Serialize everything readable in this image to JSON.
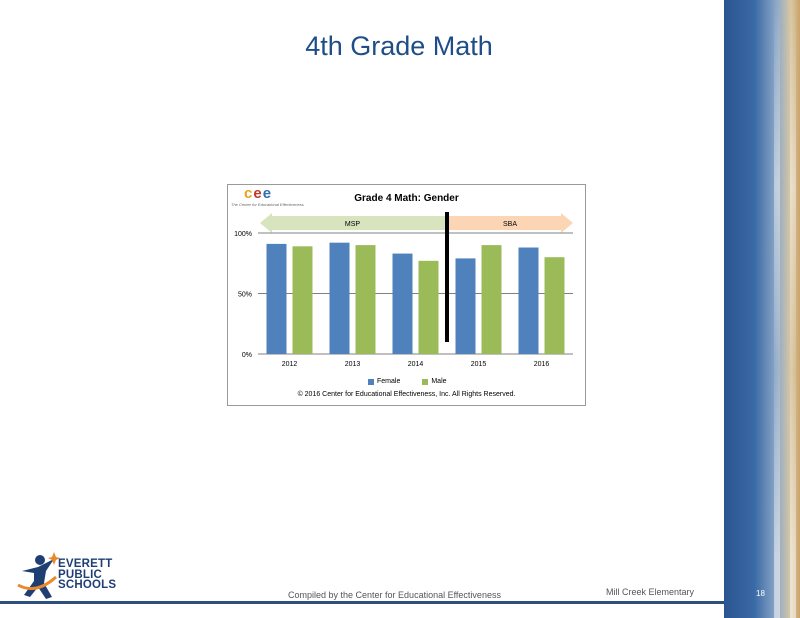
{
  "slide": {
    "title": "4th Grade Math",
    "page_number": "18",
    "footer_center": "Compiled by the Center for Educational Effectiveness",
    "footer_school": "Mill  Creek Elementary"
  },
  "logo": {
    "lines": [
      "EVERETT",
      "PUBLIC",
      "SCHOOLS"
    ]
  },
  "cee_logo": {
    "letters": [
      "c",
      "e",
      "e"
    ],
    "subtitle": "The Center for Educational Effectiveness",
    "colors": [
      "#e8a21c",
      "#c0392b",
      "#2f6db5"
    ]
  },
  "colors": {
    "female": "#4f81bd",
    "male": "#9bbb59",
    "title": "#1f4e86",
    "msp_band": "#d7e4bd",
    "sba_band": "#fcd5b5"
  },
  "chart_data": {
    "type": "bar",
    "title": "Grade 4 Math: Gender",
    "categories": [
      "2012",
      "2013",
      "2014",
      "2015",
      "2016"
    ],
    "series": [
      {
        "name": "Female",
        "values": [
          91,
          92,
          83,
          79,
          88
        ]
      },
      {
        "name": "Male",
        "values": [
          89,
          90,
          77,
          90,
          80
        ]
      }
    ],
    "yticks": [
      "0%",
      "50%",
      "100%"
    ],
    "ylim": [
      0,
      100
    ],
    "grid": true,
    "legend": "bottom",
    "bands": [
      {
        "label": "MSP",
        "years": [
          "2012",
          "2013",
          "2014"
        ]
      },
      {
        "label": "SBA",
        "years": [
          "2015",
          "2016"
        ]
      }
    ],
    "copyright": "© 2016 Center for Educational Effectiveness, Inc. All Rights Reserved."
  }
}
